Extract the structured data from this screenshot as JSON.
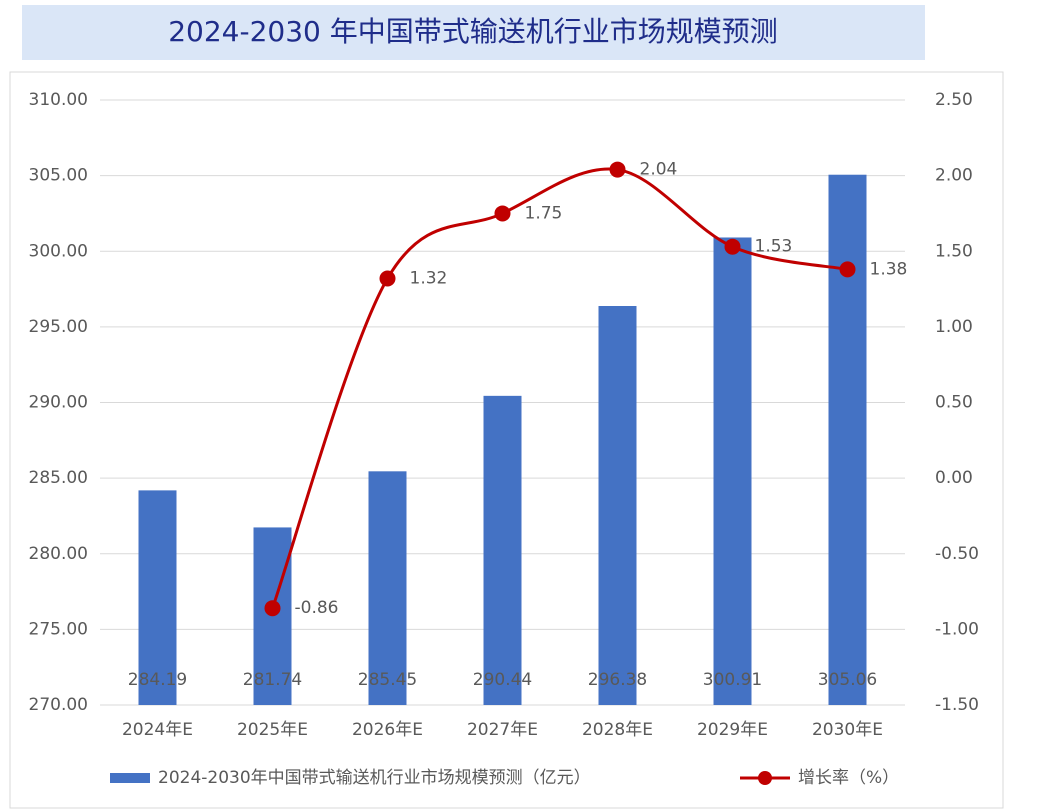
{
  "chart_data": {
    "type": "bar_line",
    "title": "2024-2030 年中国带式输送机行业市场规模预测",
    "categories": [
      "2024年E",
      "2025年E",
      "2026年E",
      "2027年E",
      "2028年E",
      "2029年E",
      "2030年E"
    ],
    "series": [
      {
        "name": "2024-2030年中国带式输送机行业市场规模预测（亿元）",
        "type": "bar",
        "color": "#4472c4",
        "values": [
          284.19,
          281.74,
          285.45,
          290.44,
          296.38,
          300.91,
          305.06
        ]
      },
      {
        "name": "增长率（%）",
        "type": "line",
        "axis": "y2",
        "color": "#c00000",
        "values": [
          null,
          -0.86,
          1.32,
          1.75,
          2.04,
          1.53,
          1.38
        ]
      }
    ],
    "ylim": [
      270,
      310
    ],
    "yticks": [
      {
        "value": 270,
        "label": "270.00"
      },
      {
        "value": 275,
        "label": "275.00"
      },
      {
        "value": 280,
        "label": "280.00"
      },
      {
        "value": 285,
        "label": "285.00"
      },
      {
        "value": 290,
        "label": "290.00"
      },
      {
        "value": 295,
        "label": "295.00"
      },
      {
        "value": 300,
        "label": "300.00"
      },
      {
        "value": 305,
        "label": "305.00"
      },
      {
        "value": 310,
        "label": "310.00"
      }
    ],
    "y2lim": [
      -1.5,
      2.5
    ],
    "y2ticks": [
      {
        "value": -1.5,
        "label": "-1.50"
      },
      {
        "value": -1,
        "label": "-1.00"
      },
      {
        "value": -0.5,
        "label": "-0.50"
      },
      {
        "value": 0,
        "label": "0.00"
      },
      {
        "value": 0.5,
        "label": "0.50"
      },
      {
        "value": 1,
        "label": "1.00"
      },
      {
        "value": 1.5,
        "label": "1.50"
      },
      {
        "value": 2,
        "label": "2.00"
      },
      {
        "value": 2.5,
        "label": "2.50"
      }
    ],
    "grid": true,
    "legend": "bottom"
  }
}
